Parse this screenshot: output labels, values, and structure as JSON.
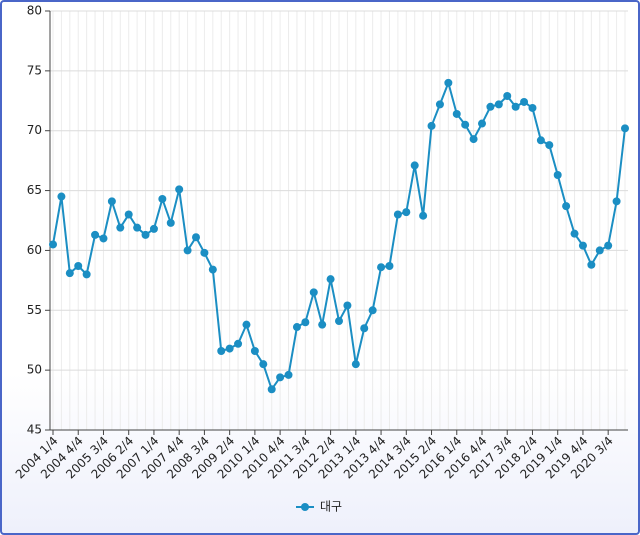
{
  "chart_data": {
    "type": "line",
    "categories": [
      "2004 1/4",
      null,
      null,
      "2004 4/4",
      null,
      null,
      "2005 3/4",
      null,
      null,
      "2006 2/4",
      null,
      null,
      "2007 1/4",
      null,
      null,
      "2007 4/4",
      null,
      null,
      "2008 3/4",
      null,
      null,
      "2009 2/4",
      null,
      null,
      "2010 1/4",
      null,
      null,
      "2010 4/4",
      null,
      null,
      "2011 3/4",
      null,
      null,
      "2012 2/4",
      null,
      null,
      "2013 1/4",
      null,
      null,
      "2013 4/4",
      null,
      null,
      "2014 3/4",
      null,
      null,
      "2015 2/4",
      null,
      null,
      "2016 1/4",
      null,
      null,
      "2016 4/4",
      null,
      null,
      "2017 3/4",
      null,
      null,
      "2018 2/4",
      null,
      null,
      "2019 1/4",
      null,
      null,
      "2019 4/4",
      null,
      null,
      "2020 3/4",
      null,
      null
    ],
    "series": [
      {
        "name": "대구",
        "color": "#1b8ec3",
        "values": [
          60.5,
          64.5,
          58.1,
          58.7,
          58.0,
          61.3,
          61.0,
          64.1,
          61.9,
          63.0,
          61.9,
          61.3,
          61.8,
          64.3,
          62.3,
          65.1,
          60.0,
          61.1,
          59.8,
          58.4,
          51.6,
          51.8,
          52.2,
          53.8,
          51.6,
          50.5,
          48.4,
          49.4,
          49.6,
          53.6,
          54.0,
          56.5,
          53.8,
          57.6,
          54.1,
          55.4,
          50.5,
          53.5,
          55.0,
          58.6,
          58.7,
          63.0,
          63.2,
          67.1,
          62.9,
          70.4,
          72.2,
          74.0,
          71.4,
          70.5,
          69.3,
          70.6,
          72.0,
          72.2,
          72.9,
          72.0,
          72.4,
          71.9,
          69.2,
          68.8,
          66.3,
          63.7,
          61.4,
          60.4,
          58.8,
          60.0,
          60.4,
          64.1,
          70.2
        ]
      }
    ],
    "ylim": [
      45,
      80
    ],
    "yticks": [
      45,
      50,
      55,
      60,
      65,
      70,
      75,
      80
    ],
    "grid": true,
    "legend": "bottom"
  }
}
